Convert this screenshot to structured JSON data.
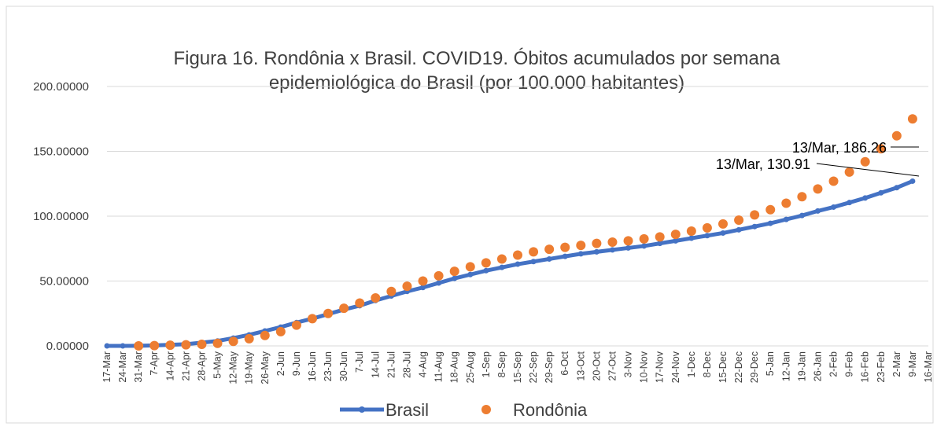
{
  "chart_data": {
    "type": "line",
    "title": [
      "Figura 16. Rondônia x Brasil. COVID19. Óbitos acumulados por semana",
      "epidemiológica do Brasil (por 100.000 habitantes)"
    ],
    "categories": [
      "17-Mar",
      "24-Mar",
      "31-Mar",
      "7-Apr",
      "14-Apr",
      "21-Apr",
      "28-Apr",
      "5-May",
      "12-May",
      "19-May",
      "26-May",
      "2-Jun",
      "9-Jun",
      "16-Jun",
      "23-Jun",
      "30-Jun",
      "7-Jul",
      "14-Jul",
      "21-Jul",
      "28-Jul",
      "4-Aug",
      "11-Aug",
      "18-Aug",
      "25-Aug",
      "1-Sep",
      "8-Sep",
      "15-Sep",
      "22-Sep",
      "29-Sep",
      "6-Oct",
      "13-Oct",
      "20-Oct",
      "27-Oct",
      "3-Nov",
      "10-Nov",
      "17-Nov",
      "24-Nov",
      "1-Dec",
      "8-Dec",
      "15-Dec",
      "22-Dec",
      "29-Dec",
      "5-Jan",
      "12-Jan",
      "19-Jan",
      "26-Jan",
      "2-Feb",
      "9-Feb",
      "16-Feb",
      "23-Feb",
      "2-Mar",
      "9-Mar",
      "16-Mar"
    ],
    "series": [
      {
        "name": "Brasil",
        "color": "#4472c4",
        "line": true,
        "values": [
          0,
          0,
          0.1,
          0.4,
          0.8,
          1.3,
          2.5,
          3.8,
          6,
          8.5,
          11.5,
          14.5,
          18,
          21,
          24.5,
          28,
          31,
          35,
          38.5,
          42,
          45,
          48.5,
          52,
          55,
          58,
          60.5,
          63,
          65,
          67,
          69,
          71,
          72.5,
          74,
          75.5,
          77,
          79,
          81,
          83,
          85,
          87,
          89.5,
          92,
          94.5,
          97.5,
          100.5,
          104,
          107,
          110.5,
          114,
          118,
          122,
          127,
          null
        ]
      },
      {
        "name": "Rondônia",
        "color": "#ed7d31",
        "line": false,
        "values": [
          null,
          null,
          0,
          0.2,
          0.5,
          0.8,
          1.2,
          2,
          3.5,
          5.5,
          8,
          11,
          16,
          21,
          25,
          29,
          33,
          37,
          42,
          46,
          50,
          54,
          57.5,
          61,
          64,
          67,
          70,
          72.5,
          74.5,
          76,
          77.5,
          79,
          80,
          81,
          82.5,
          84,
          86,
          88.5,
          91,
          94,
          97,
          101,
          105,
          110,
          115,
          121,
          127,
          134,
          142,
          152,
          162,
          175,
          null
        ]
      }
    ],
    "annotations": [
      "13/Mar, 186.26",
      "13/Mar, 130.91"
    ],
    "ylim": [
      0,
      200
    ],
    "yticks": [
      {
        "value": 0,
        "label": "0.00000"
      },
      {
        "value": 50,
        "label": "50.00000"
      },
      {
        "value": 100,
        "label": "100.00000"
      },
      {
        "value": 150,
        "label": "150.00000"
      },
      {
        "value": 200,
        "label": "200.00000"
      }
    ],
    "grid": true,
    "legend": "bottom"
  }
}
